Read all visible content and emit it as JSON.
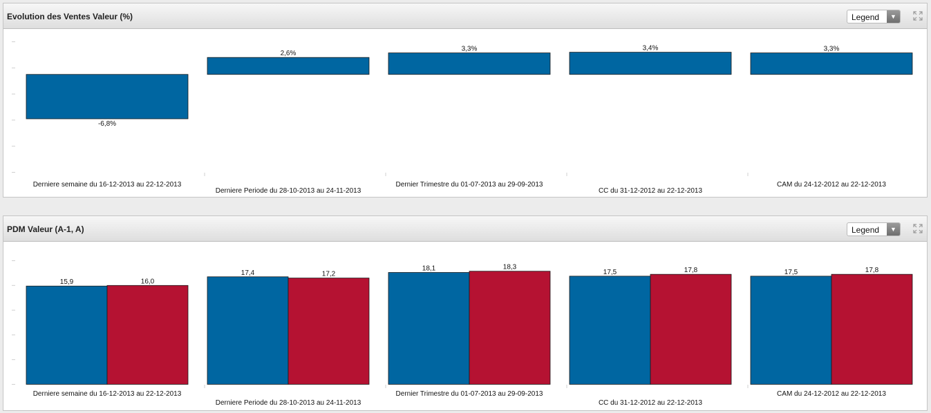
{
  "panels": [
    {
      "title": "Evolution des Ventes Valeur (%)",
      "legend_label": "Legend",
      "legend_icon": "chevron-down-icon",
      "expand_icon": "expand-icon"
    },
    {
      "title": "PDM Valeur (A-1, A)",
      "legend_label": "Legend",
      "legend_icon": "chevron-down-icon",
      "expand_icon": "expand-icon"
    }
  ],
  "colors": {
    "blue": "#0066a1",
    "red": "#b51232",
    "axis": "#cfcfcf"
  },
  "chart_data": [
    {
      "type": "bar",
      "title": "Evolution des Ventes Valeur (%)",
      "xlabel": "",
      "ylabel": "",
      "categories": [
        "Derniere semaine du 16-12-2013 au 22-12-2013",
        "Derniere Periode du 28-10-2013 au 24-11-2013",
        "Dernier Trimestre du 01-07-2013 au 29-09-2013",
        "CC du 31-12-2012 au 22-12-2013",
        "CAM du 24-12-2012 au 22-12-2013"
      ],
      "series": [
        {
          "values": [
            -6.8,
            2.6,
            3.3,
            3.4,
            3.3
          ],
          "labels": [
            "-6,8%",
            "2,6%",
            "3,3%",
            "3,4%",
            "3,3%"
          ],
          "color": "#0066a1"
        }
      ],
      "ylim": [
        -15,
        5
      ],
      "grid": false,
      "legend": "hidden"
    },
    {
      "type": "bar",
      "title": "PDM Valeur (A-1, A)",
      "xlabel": "",
      "ylabel": "",
      "categories": [
        "Derniere semaine du 16-12-2013 au 22-12-2013",
        "Derniere Periode du 28-10-2013 au 24-11-2013",
        "Dernier Trimestre du 01-07-2013 au 29-09-2013",
        "CC du 31-12-2012 au 22-12-2013",
        "CAM du 24-12-2012 au 22-12-2013"
      ],
      "series": [
        {
          "values": [
            15.9,
            17.4,
            18.1,
            17.5,
            17.5
          ],
          "labels": [
            "15,9",
            "17,4",
            "18,1",
            "17,5",
            "17,5"
          ],
          "color": "#0066a1"
        },
        {
          "values": [
            16.0,
            17.2,
            18.3,
            17.8,
            17.8
          ],
          "labels": [
            "16,0",
            "17,2",
            "18,3",
            "17,8",
            "17,8"
          ],
          "color": "#b51232"
        }
      ],
      "ylim": [
        0,
        20
      ],
      "grid": false,
      "legend": "hidden"
    }
  ]
}
